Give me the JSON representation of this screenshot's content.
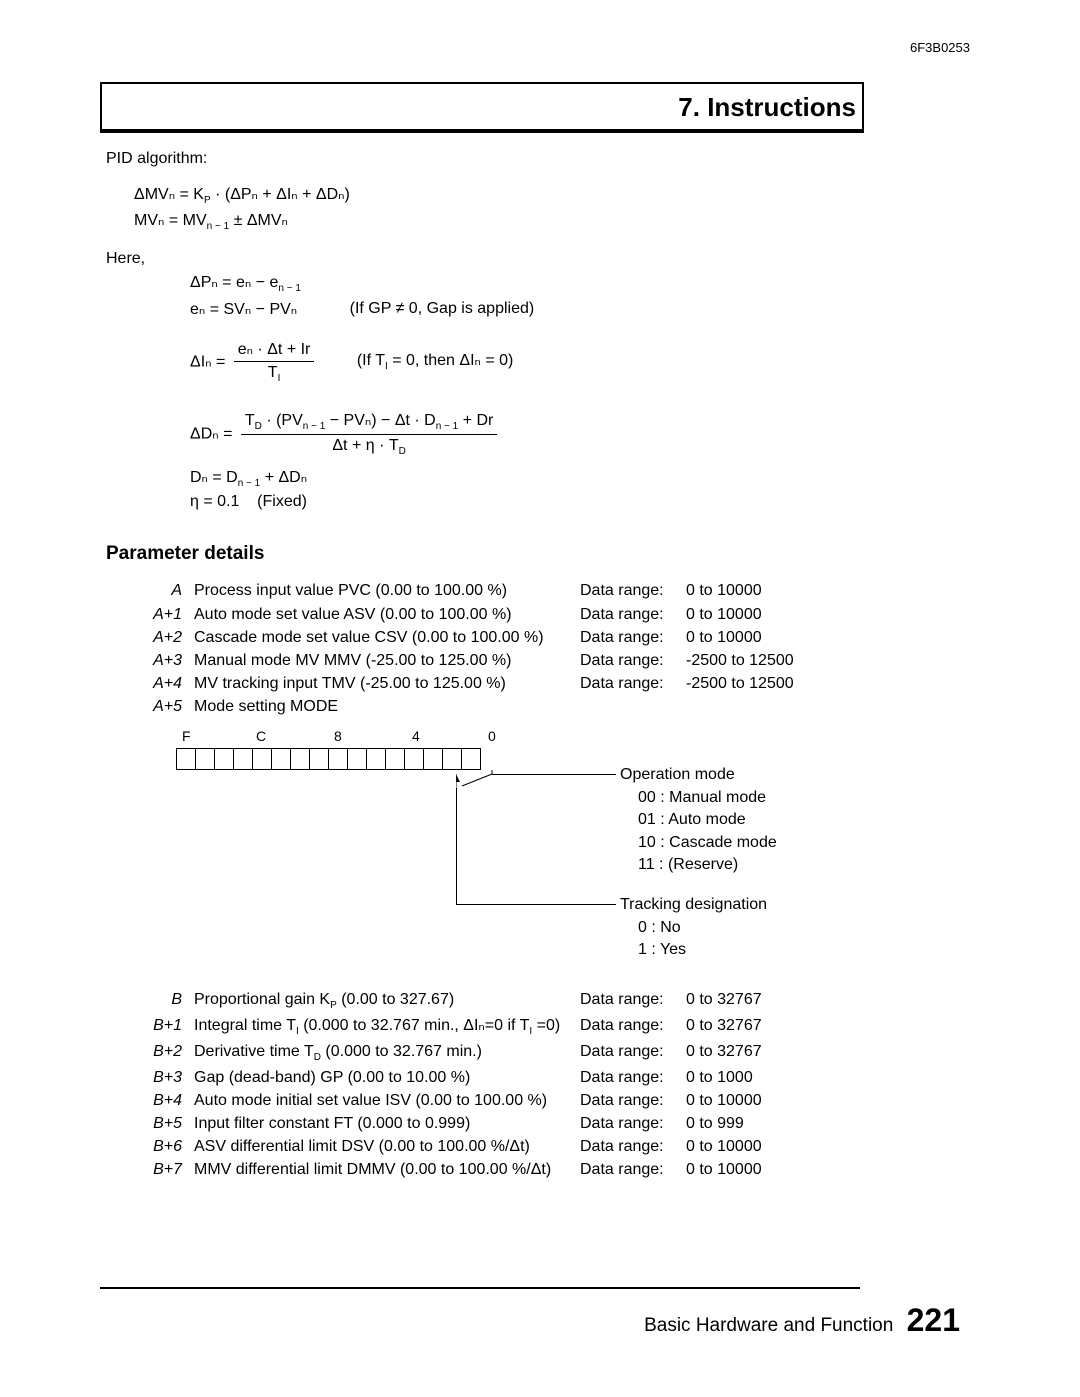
{
  "doc_code": "6F3B0253",
  "title": "7. Instructions",
  "pid_label": "PID algorithm:",
  "eq": {
    "dMV": "ΔMVₙ = K",
    "dMV_P": "P",
    "dMV_tail": " · (ΔPₙ + ΔIₙ + ΔDₙ)",
    "MV": "MVₙ = MV",
    "MV_nm1": "n − 1",
    "MV_tail": " ± ΔMVₙ"
  },
  "here_label": "Here,",
  "defs": {
    "dP": "ΔPₙ = eₙ − e",
    "dP_nm1": "n − 1",
    "en": "eₙ = SVₙ − PVₙ",
    "en_cond": "(If GP ≠ 0, Gap is applied)",
    "dI_lhs": "ΔIₙ =",
    "dI_num": "eₙ · Δt + Ir",
    "dI_den": "T",
    "dI_den_sub": "I",
    "dI_cond": "(If T",
    "dI_cond_sub": "I",
    "dI_cond_tail": " = 0, then ΔIₙ = 0)",
    "dD_lhs": "ΔDₙ =",
    "dD_num_a": "T",
    "dD_num_a_sub": "D",
    "dD_num_b": " · (PV",
    "dD_num_nm1": "n − 1",
    "dD_num_c": " − PVₙ) − Δt · D",
    "dD_num_nm1b": "n − 1",
    "dD_num_d": " + Dr",
    "dD_den_a": "Δt + η · T",
    "dD_den_sub": "D",
    "Dn": "Dₙ = D",
    "Dn_nm1": "n − 1",
    "Dn_tail": " + ΔDₙ",
    "eta": "η = 0.1    (Fixed)"
  },
  "param_header": "Parameter details",
  "paramsA": [
    {
      "k": "A",
      "d": "Process input value PVC (0.00 to 100.00 %)",
      "l": "Data range:",
      "r": "0 to 10000"
    },
    {
      "k": "A+1",
      "d": "Auto mode set value ASV (0.00 to 100.00 %)",
      "l": "Data range:",
      "r": "0 to 10000"
    },
    {
      "k": "A+2",
      "d": "Cascade mode set value CSV (0.00 to 100.00 %)",
      "l": "Data range:",
      "r": "0 to 10000"
    },
    {
      "k": "A+3",
      "d": "Manual mode MV MMV (-25.00 to 125.00 %)",
      "l": "Data range:",
      "r": "-2500 to 12500"
    },
    {
      "k": "A+4",
      "d": "MV tracking input TMV (-25.00 to 125.00 %)",
      "l": "Data range:",
      "r": "-2500 to 12500"
    },
    {
      "k": "A+5",
      "d": "Mode setting MODE",
      "l": "",
      "r": ""
    }
  ],
  "bit_labels": {
    "F": "F",
    "C": "C",
    "8": "8",
    "4": "4",
    "0": "0"
  },
  "mode1": {
    "title": "Operation mode",
    "l1": "00 :  Manual mode",
    "l2": "01 :  Auto mode",
    "l3": "10 :  Cascade mode",
    "l4": "11 :  (Reserve)"
  },
  "mode2": {
    "title": "Tracking designation",
    "l1": "0 :  No",
    "l2": "1 :  Yes"
  },
  "paramsB": [
    {
      "k": "B",
      "d": "Proportional gain K",
      "sub": "P",
      "tail": " (0.00 to 327.67)",
      "l": "Data range:",
      "r": "0 to 32767"
    },
    {
      "k": "B+1",
      "d": "Integral time T",
      "sub": "I",
      "tail": " (0.000 to 32.767 min., ΔIₙ=0 if T",
      "sub2": "I",
      "tail2": " =0)",
      "l": "Data range:",
      "r": "0 to 32767"
    },
    {
      "k": "B+2",
      "d": "Derivative time T",
      "sub": "D",
      "tail": " (0.000 to 32.767 min.)",
      "l": "Data range:",
      "r": "0 to 32767"
    },
    {
      "k": "B+3",
      "d": "Gap (dead-band) GP (0.00 to 10.00 %)",
      "l": "Data range:",
      "r": "0 to 1000"
    },
    {
      "k": "B+4",
      "d": "Auto mode initial set value ISV (0.00 to 100.00 %)",
      "l": "Data range:",
      "r": "0 to 10000"
    },
    {
      "k": "B+5",
      "d": "Input filter constant FT (0.000 to 0.999)",
      "l": "Data range:",
      "r": "0 to 999"
    },
    {
      "k": "B+6",
      "d": "ASV differential limit DSV (0.00 to 100.00 %/Δt)",
      "l": "Data range:",
      "r": "0 to 10000"
    },
    {
      "k": "B+7",
      "d": "MMV differential limit DMMV (0.00 to 100.00 %/Δt)",
      "l": "Data range:",
      "r": "0 to 10000"
    }
  ],
  "footer": {
    "text": "Basic Hardware and Function",
    "page": "221"
  }
}
